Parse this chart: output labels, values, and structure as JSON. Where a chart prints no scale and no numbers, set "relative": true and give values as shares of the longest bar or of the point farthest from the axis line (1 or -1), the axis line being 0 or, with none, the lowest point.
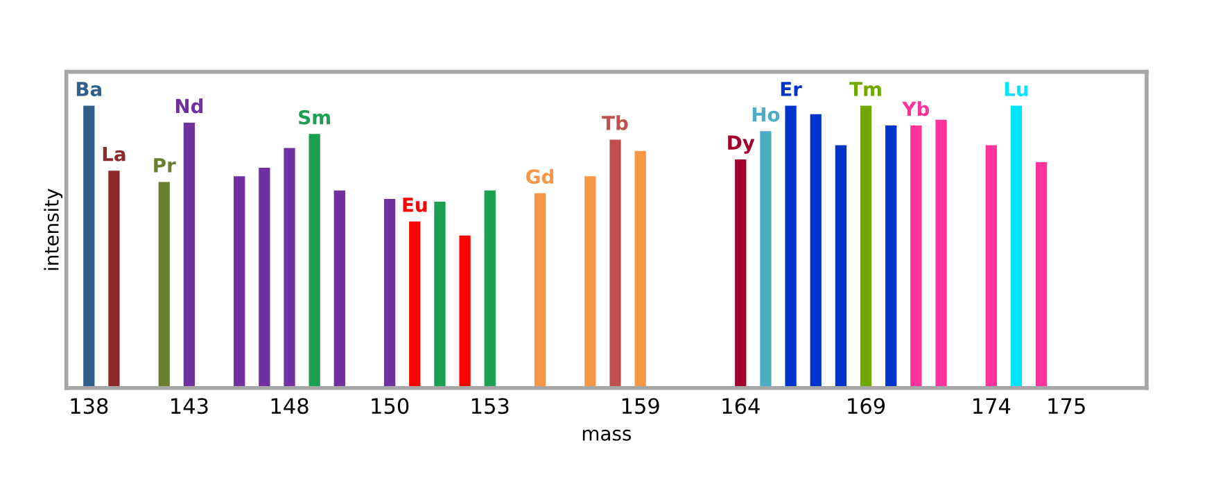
{
  "chart_data": {
    "type": "bar",
    "relative": true,
    "xlabel": "mass",
    "ylabel": "intensity",
    "tick_labels": "x",
    "grid": false,
    "legend": false,
    "categories": [
      "138",
      null,
      null,
      null,
      "143",
      null,
      null,
      null,
      "148",
      null,
      null,
      null,
      "150",
      null,
      null,
      null,
      "153",
      null,
      null,
      null,
      null,
      null,
      "159",
      null,
      null,
      null,
      "164",
      null,
      null,
      null,
      null,
      "169",
      null,
      null,
      null,
      null,
      "174",
      null,
      null,
      "175",
      null,
      null,
      null
    ],
    "series": [
      {
        "name": "Ba",
        "color": "#2f5f8a",
        "values": [
          1.0,
          null,
          null,
          null,
          null,
          null,
          null,
          null,
          null,
          null,
          null,
          null,
          null,
          null,
          null,
          null,
          null,
          null,
          null,
          null,
          null,
          null,
          null,
          null,
          null,
          null,
          null,
          null,
          null,
          null,
          null,
          null,
          null,
          null,
          null,
          null,
          null,
          null,
          null,
          null,
          null,
          null,
          null
        ]
      },
      {
        "name": "La",
        "color": "#8b2a2a",
        "values": [
          null,
          0.77,
          null,
          null,
          null,
          null,
          null,
          null,
          null,
          null,
          null,
          null,
          null,
          null,
          null,
          null,
          null,
          null,
          null,
          null,
          null,
          null,
          null,
          null,
          null,
          null,
          null,
          null,
          null,
          null,
          null,
          null,
          null,
          null,
          null,
          null,
          null,
          null,
          null,
          null,
          null,
          null,
          null
        ]
      },
      {
        "name": "Pr",
        "color": "#6b7f30",
        "values": [
          null,
          null,
          null,
          0.73,
          null,
          null,
          null,
          null,
          null,
          null,
          null,
          null,
          null,
          null,
          null,
          null,
          null,
          null,
          null,
          null,
          null,
          null,
          null,
          null,
          null,
          null,
          null,
          null,
          null,
          null,
          null,
          null,
          null,
          null,
          null,
          null,
          null,
          null,
          null,
          null,
          null,
          null,
          null
        ]
      },
      {
        "name": "Nd",
        "color": "#7030a0",
        "values": [
          null,
          null,
          null,
          null,
          0.94,
          null,
          0.75,
          0.78,
          0.85,
          null,
          0.7,
          null,
          0.67,
          null,
          null,
          null,
          null,
          null,
          null,
          null,
          null,
          null,
          null,
          null,
          null,
          null,
          null,
          null,
          null,
          null,
          null,
          null,
          null,
          null,
          null,
          null,
          null,
          null,
          null,
          null,
          null,
          null,
          null
        ]
      },
      {
        "name": "Sm",
        "color": "#1aa050",
        "values": [
          null,
          null,
          null,
          null,
          null,
          null,
          null,
          null,
          null,
          0.9,
          null,
          null,
          null,
          null,
          0.66,
          null,
          0.7,
          null,
          null,
          null,
          null,
          null,
          null,
          null,
          null,
          null,
          null,
          null,
          null,
          null,
          null,
          null,
          null,
          null,
          null,
          null,
          null,
          null,
          null,
          null,
          null,
          null,
          null
        ]
      },
      {
        "name": "Eu",
        "color": "#ff0000",
        "values": [
          null,
          null,
          null,
          null,
          null,
          null,
          null,
          null,
          null,
          null,
          null,
          null,
          null,
          0.59,
          null,
          0.54,
          null,
          null,
          null,
          null,
          null,
          null,
          null,
          null,
          null,
          null,
          null,
          null,
          null,
          null,
          null,
          null,
          null,
          null,
          null,
          null,
          null,
          null,
          null,
          null,
          null,
          null,
          null
        ]
      },
      {
        "name": "Gd",
        "color": "#f79646",
        "values": [
          null,
          null,
          null,
          null,
          null,
          null,
          null,
          null,
          null,
          null,
          null,
          null,
          null,
          null,
          null,
          null,
          null,
          null,
          0.69,
          null,
          0.75,
          null,
          0.84,
          null,
          null,
          null,
          null,
          null,
          null,
          null,
          null,
          null,
          null,
          null,
          null,
          null,
          null,
          null,
          null,
          null,
          null,
          null,
          null
        ]
      },
      {
        "name": "Tb",
        "color": "#c0504d",
        "values": [
          null,
          null,
          null,
          null,
          null,
          null,
          null,
          null,
          null,
          null,
          null,
          null,
          null,
          null,
          null,
          null,
          null,
          null,
          null,
          null,
          null,
          0.88,
          null,
          null,
          null,
          null,
          null,
          null,
          null,
          null,
          null,
          null,
          null,
          null,
          null,
          null,
          null,
          null,
          null,
          null,
          null,
          null,
          null
        ]
      },
      {
        "name": "Dy",
        "color": "#a0002a",
        "values": [
          null,
          null,
          null,
          null,
          null,
          null,
          null,
          null,
          null,
          null,
          null,
          null,
          null,
          null,
          null,
          null,
          null,
          null,
          null,
          null,
          null,
          null,
          null,
          null,
          null,
          null,
          0.81,
          null,
          null,
          null,
          null,
          null,
          null,
          null,
          null,
          null,
          null,
          null,
          null,
          null,
          null,
          null,
          null
        ]
      },
      {
        "name": "Ho",
        "color": "#4bacc6",
        "values": [
          null,
          null,
          null,
          null,
          null,
          null,
          null,
          null,
          null,
          null,
          null,
          null,
          null,
          null,
          null,
          null,
          null,
          null,
          null,
          null,
          null,
          null,
          null,
          null,
          null,
          null,
          null,
          0.91,
          null,
          null,
          null,
          null,
          null,
          null,
          null,
          null,
          null,
          null,
          null,
          null,
          null,
          null,
          null
        ]
      },
      {
        "name": "Er",
        "color": "#0033cc",
        "values": [
          null,
          null,
          null,
          null,
          null,
          null,
          null,
          null,
          null,
          null,
          null,
          null,
          null,
          null,
          null,
          null,
          null,
          null,
          null,
          null,
          null,
          null,
          null,
          null,
          null,
          null,
          null,
          null,
          1.0,
          0.97,
          0.86,
          null,
          0.93,
          null,
          null,
          null,
          null,
          null,
          null,
          null,
          null,
          null,
          null
        ]
      },
      {
        "name": "Tm",
        "color": "#70a800",
        "values": [
          null,
          null,
          null,
          null,
          null,
          null,
          null,
          null,
          null,
          null,
          null,
          null,
          null,
          null,
          null,
          null,
          null,
          null,
          null,
          null,
          null,
          null,
          null,
          null,
          null,
          null,
          null,
          null,
          null,
          null,
          null,
          1.0,
          null,
          null,
          null,
          null,
          null,
          null,
          null,
          null,
          null,
          null,
          null
        ]
      },
      {
        "name": "Yb",
        "color": "#ff3399",
        "values": [
          null,
          null,
          null,
          null,
          null,
          null,
          null,
          null,
          null,
          null,
          null,
          null,
          null,
          null,
          null,
          null,
          null,
          null,
          null,
          null,
          null,
          null,
          null,
          null,
          null,
          null,
          null,
          null,
          null,
          null,
          null,
          null,
          null,
          0.93,
          0.95,
          null,
          0.86,
          null,
          0.8,
          null,
          null,
          null,
          null
        ]
      },
      {
        "name": "Lu",
        "color": "#00e5ff",
        "values": [
          null,
          null,
          null,
          null,
          null,
          null,
          null,
          null,
          null,
          null,
          null,
          null,
          null,
          null,
          null,
          null,
          null,
          null,
          null,
          null,
          null,
          null,
          null,
          null,
          null,
          null,
          null,
          null,
          null,
          null,
          null,
          null,
          null,
          null,
          null,
          null,
          null,
          1.0,
          null,
          null,
          null,
          null,
          null
        ]
      }
    ]
  }
}
